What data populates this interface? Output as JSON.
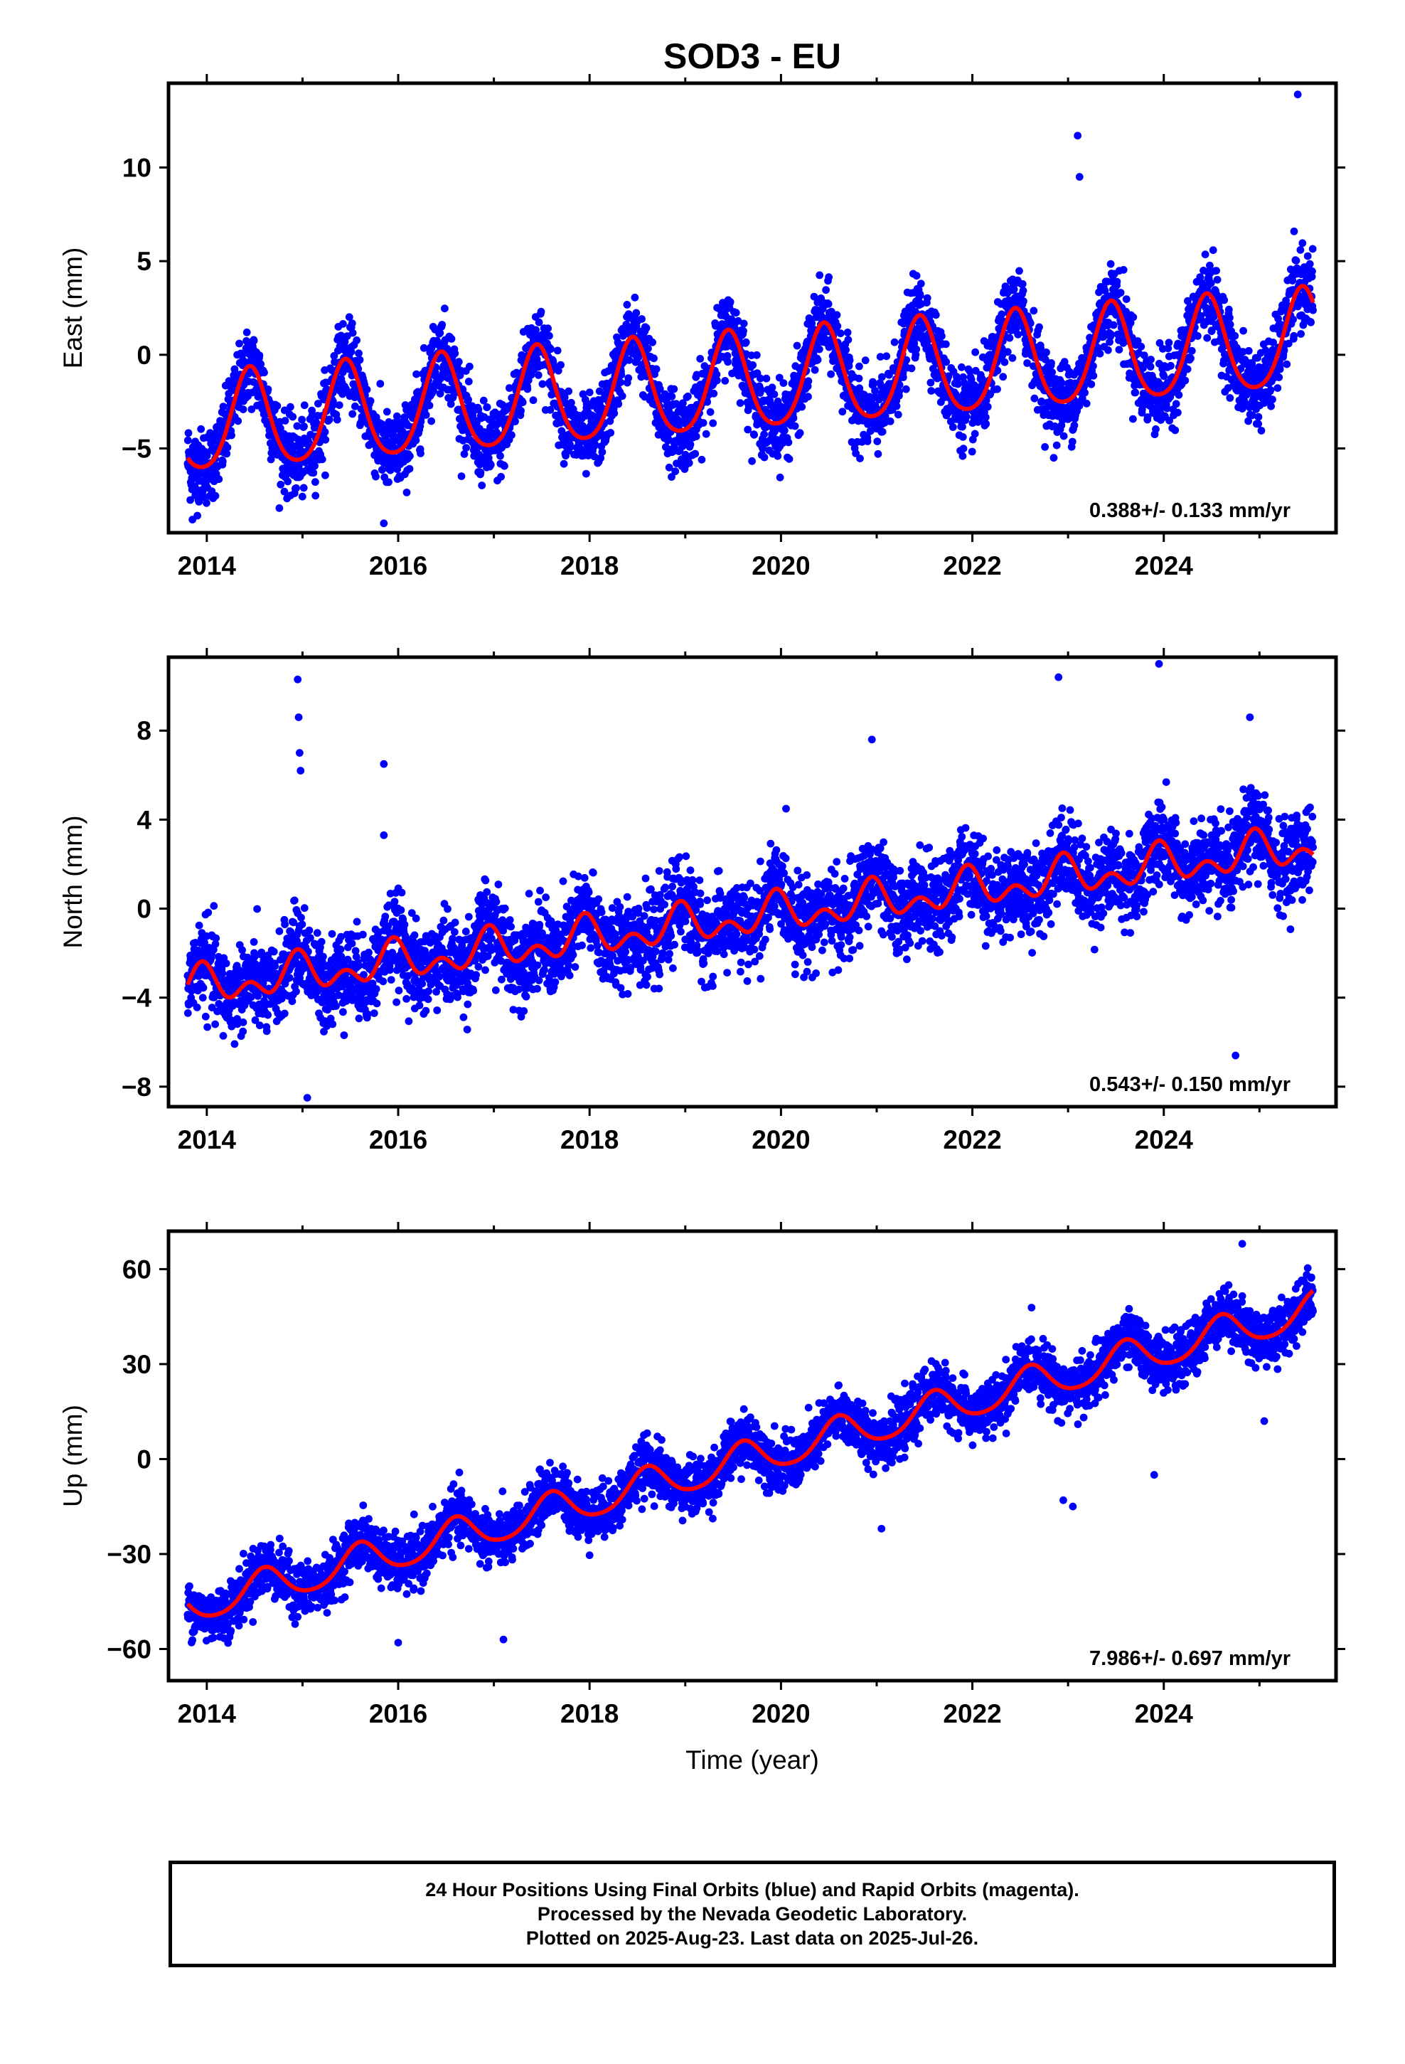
{
  "title": "SOD3 - EU",
  "colors": {
    "final_orbits": "#0000ff",
    "model": "#ff0000",
    "axes": "#000000"
  },
  "chart_data": [
    {
      "type": "scatter",
      "ylabel": "East (mm)",
      "xlabel": "",
      "xlim": [
        2013.6,
        2025.8
      ],
      "ylim": [
        -9.5,
        14.5
      ],
      "yticks": [
        -5,
        0,
        5,
        10
      ],
      "xticks": [
        2014,
        2016,
        2018,
        2020,
        2022,
        2024
      ],
      "rate_label": "0.388+/- 0.133 mm/yr",
      "model": {
        "offset": -1.6,
        "trend_mm_per_yr": 0.388,
        "trend_ref_year": 2019.6,
        "annual_amp": 2.6,
        "annual_phase_year": 2014.45,
        "semiannual_amp": 0.4,
        "semiannual_phase_year": 2014.45
      },
      "scatter_sigma": 1.0,
      "outliers": [
        [
          2013.85,
          -8.8
        ],
        [
          2013.88,
          -7.5
        ],
        [
          2015.85,
          -9.0
        ],
        [
          2015.9,
          -6.8
        ],
        [
          2023.1,
          11.7
        ],
        [
          2023.12,
          9.5
        ],
        [
          2025.4,
          13.9
        ],
        [
          2022.85,
          -5.5
        ]
      ]
    },
    {
      "type": "scatter",
      "ylabel": "North (mm)",
      "xlabel": "",
      "xlim": [
        2013.6,
        2025.8
      ],
      "ylim": [
        -8.9,
        11.3
      ],
      "yticks": [
        -8,
        -4,
        0,
        4,
        8
      ],
      "xticks": [
        2014,
        2016,
        2018,
        2020,
        2022,
        2024
      ],
      "rate_label": "0.543+/- 0.150 mm/yr",
      "model": {
        "offset": -0.45,
        "trend_mm_per_yr": 0.543,
        "trend_ref_year": 2019.6,
        "annual_amp": 0.6,
        "annual_phase_year": 2014.95,
        "semiannual_amp": 0.55,
        "semiannual_phase_year": 2014.95
      },
      "scatter_sigma": 0.95,
      "outliers": [
        [
          2014.95,
          10.3
        ],
        [
          2014.96,
          8.6
        ],
        [
          2014.97,
          7.0
        ],
        [
          2014.98,
          6.2
        ],
        [
          2015.85,
          6.5
        ],
        [
          2015.85,
          3.3
        ],
        [
          2015.05,
          -8.5
        ],
        [
          2022.9,
          10.4
        ],
        [
          2023.95,
          11.0
        ],
        [
          2024.75,
          -6.6
        ],
        [
          2024.9,
          8.6
        ],
        [
          2020.95,
          7.6
        ]
      ]
    },
    {
      "type": "scatter",
      "ylabel": "Up (mm)",
      "xlabel": "Time (year)",
      "xlim": [
        2013.6,
        2025.8
      ],
      "ylim": [
        -70,
        72
      ],
      "yticks": [
        -60,
        -30,
        0,
        30,
        60
      ],
      "xticks": [
        2014,
        2016,
        2018,
        2020,
        2022,
        2024
      ],
      "rate_label": "7.986+/- 0.697 mm/yr",
      "model": {
        "offset": -0.5,
        "trend_mm_per_yr": 7.986,
        "trend_ref_year": 2019.6,
        "annual_amp": 5.5,
        "annual_phase_year": 2014.6,
        "semiannual_amp": 0.8,
        "semiannual_phase_year": 2014.6
      },
      "scatter_sigma": 4.2,
      "outliers": [
        [
          2016.0,
          -58
        ],
        [
          2017.1,
          -57
        ],
        [
          2022.95,
          -13
        ],
        [
          2023.05,
          -15
        ],
        [
          2023.9,
          -5
        ],
        [
          2021.05,
          -22
        ],
        [
          2024.82,
          68
        ],
        [
          2025.05,
          12
        ]
      ]
    }
  ],
  "footer": {
    "line1": "24 Hour Positions Using Final Orbits (blue) and Rapid Orbits (magenta).",
    "line2": "Processed by the Nevada Geodetic Laboratory.",
    "line3": "Plotted on 2025-Aug-23. Last data on 2025-Jul-26."
  }
}
